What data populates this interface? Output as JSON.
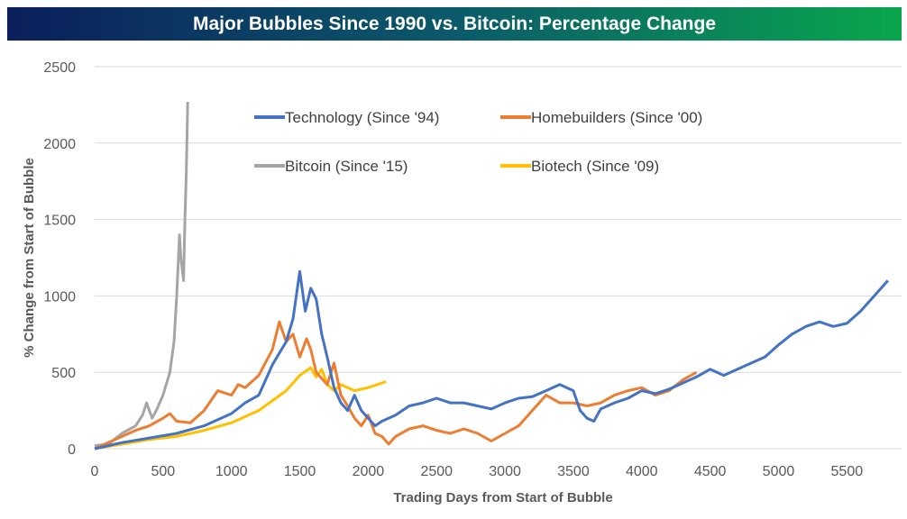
{
  "chart_data": {
    "type": "line",
    "title": "Major Bubbles Since 1990 vs. Bitcoin: Percentage Change",
    "xlabel": "Trading Days from Start of Bubble",
    "ylabel": "% Change from Start of Bubble",
    "xlim": [
      0,
      5900
    ],
    "ylim": [
      0,
      2500
    ],
    "xticks": [
      "0",
      "500",
      "1000",
      "1500",
      "2000",
      "2500",
      "3000",
      "3500",
      "4000",
      "4500",
      "5000",
      "5500"
    ],
    "yticks": [
      "0",
      "500",
      "1000",
      "1500",
      "2000",
      "2500"
    ],
    "grid": "horizontal",
    "legend": "top-center",
    "series": [
      {
        "name": "Technology (Since '94)",
        "color": "#4472c4",
        "points": [
          [
            0,
            0
          ],
          [
            200,
            40
          ],
          [
            400,
            70
          ],
          [
            600,
            100
          ],
          [
            800,
            150
          ],
          [
            1000,
            230
          ],
          [
            1100,
            300
          ],
          [
            1200,
            350
          ],
          [
            1300,
            550
          ],
          [
            1400,
            700
          ],
          [
            1450,
            850
          ],
          [
            1500,
            1160
          ],
          [
            1540,
            900
          ],
          [
            1580,
            1050
          ],
          [
            1620,
            980
          ],
          [
            1660,
            750
          ],
          [
            1700,
            600
          ],
          [
            1750,
            400
          ],
          [
            1800,
            300
          ],
          [
            1850,
            250
          ],
          [
            1900,
            350
          ],
          [
            1950,
            250
          ],
          [
            2000,
            200
          ],
          [
            2050,
            150
          ],
          [
            2100,
            180
          ],
          [
            2200,
            220
          ],
          [
            2300,
            280
          ],
          [
            2400,
            300
          ],
          [
            2500,
            330
          ],
          [
            2600,
            300
          ],
          [
            2700,
            300
          ],
          [
            2800,
            280
          ],
          [
            2900,
            260
          ],
          [
            3000,
            300
          ],
          [
            3100,
            330
          ],
          [
            3200,
            340
          ],
          [
            3300,
            380
          ],
          [
            3400,
            420
          ],
          [
            3500,
            380
          ],
          [
            3550,
            250
          ],
          [
            3600,
            200
          ],
          [
            3650,
            180
          ],
          [
            3700,
            260
          ],
          [
            3800,
            300
          ],
          [
            3900,
            330
          ],
          [
            4000,
            380
          ],
          [
            4100,
            360
          ],
          [
            4200,
            390
          ],
          [
            4300,
            430
          ],
          [
            4400,
            470
          ],
          [
            4500,
            520
          ],
          [
            4600,
            480
          ],
          [
            4700,
            520
          ],
          [
            4800,
            560
          ],
          [
            4900,
            600
          ],
          [
            5000,
            680
          ],
          [
            5100,
            750
          ],
          [
            5200,
            800
          ],
          [
            5300,
            830
          ],
          [
            5400,
            800
          ],
          [
            5500,
            820
          ],
          [
            5600,
            900
          ],
          [
            5700,
            1000
          ],
          [
            5800,
            1100
          ]
        ]
      },
      {
        "name": "Homebuilders (Since '00)",
        "color": "#ed7d31",
        "points": [
          [
            0,
            0
          ],
          [
            200,
            80
          ],
          [
            300,
            120
          ],
          [
            400,
            150
          ],
          [
            500,
            200
          ],
          [
            550,
            230
          ],
          [
            600,
            180
          ],
          [
            700,
            170
          ],
          [
            800,
            250
          ],
          [
            900,
            380
          ],
          [
            1000,
            350
          ],
          [
            1050,
            420
          ],
          [
            1100,
            400
          ],
          [
            1200,
            480
          ],
          [
            1300,
            650
          ],
          [
            1350,
            830
          ],
          [
            1400,
            700
          ],
          [
            1450,
            750
          ],
          [
            1500,
            600
          ],
          [
            1550,
            720
          ],
          [
            1580,
            650
          ],
          [
            1620,
            500
          ],
          [
            1700,
            420
          ],
          [
            1750,
            560
          ],
          [
            1800,
            350
          ],
          [
            1850,
            280
          ],
          [
            1900,
            200
          ],
          [
            1950,
            150
          ],
          [
            2000,
            220
          ],
          [
            2050,
            100
          ],
          [
            2100,
            80
          ],
          [
            2150,
            30
          ],
          [
            2200,
            80
          ],
          [
            2300,
            130
          ],
          [
            2400,
            150
          ],
          [
            2500,
            120
          ],
          [
            2600,
            100
          ],
          [
            2700,
            130
          ],
          [
            2800,
            100
          ],
          [
            2900,
            50
          ],
          [
            3000,
            100
          ],
          [
            3100,
            150
          ],
          [
            3200,
            250
          ],
          [
            3300,
            350
          ],
          [
            3400,
            300
          ],
          [
            3500,
            300
          ],
          [
            3600,
            280
          ],
          [
            3700,
            300
          ],
          [
            3800,
            350
          ],
          [
            3900,
            380
          ],
          [
            4000,
            400
          ],
          [
            4100,
            350
          ],
          [
            4200,
            380
          ],
          [
            4300,
            450
          ],
          [
            4400,
            500
          ]
        ]
      },
      {
        "name": "Bitcoin (Since '15)",
        "color": "#a5a5a5",
        "points": [
          [
            0,
            20
          ],
          [
            100,
            30
          ],
          [
            200,
            100
          ],
          [
            300,
            150
          ],
          [
            350,
            220
          ],
          [
            380,
            300
          ],
          [
            420,
            200
          ],
          [
            450,
            250
          ],
          [
            500,
            350
          ],
          [
            550,
            500
          ],
          [
            580,
            700
          ],
          [
            600,
            1000
          ],
          [
            620,
            1400
          ],
          [
            630,
            1250
          ],
          [
            650,
            1100
          ],
          [
            660,
            1500
          ],
          [
            670,
            1800
          ],
          [
            680,
            2270
          ]
        ]
      },
      {
        "name": "Biotech (Since '09)",
        "color": "#ffc000",
        "points": [
          [
            0,
            0
          ],
          [
            200,
            30
          ],
          [
            400,
            60
          ],
          [
            600,
            80
          ],
          [
            800,
            120
          ],
          [
            1000,
            170
          ],
          [
            1200,
            250
          ],
          [
            1400,
            380
          ],
          [
            1500,
            480
          ],
          [
            1580,
            530
          ],
          [
            1620,
            470
          ],
          [
            1660,
            520
          ],
          [
            1700,
            420
          ],
          [
            1750,
            380
          ],
          [
            1800,
            420
          ],
          [
            1900,
            380
          ],
          [
            2000,
            400
          ],
          [
            2100,
            430
          ],
          [
            2130,
            440
          ]
        ]
      }
    ]
  }
}
